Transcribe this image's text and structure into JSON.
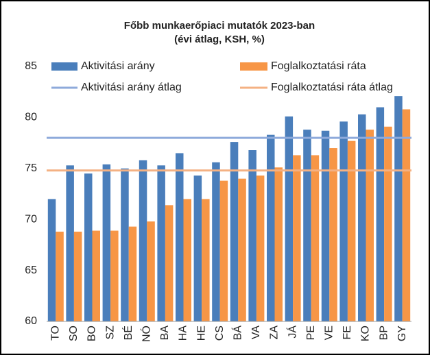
{
  "chart_data": {
    "type": "bar",
    "title": "Főbb munkaerőpiaci mutatók 2023-ban",
    "subtitle": "(évi átlag, KSH, %)",
    "categories": [
      "TO",
      "SO",
      "BO",
      "SZ",
      "BÉ",
      "NÓ",
      "BA",
      "HA",
      "HE",
      "CS",
      "BÁ",
      "VA",
      "ZA",
      "JÁ",
      "PE",
      "VE",
      "FE",
      "KO",
      "BP",
      "GY"
    ],
    "series": [
      {
        "name": "Aktivitási arány",
        "color": "#4a7ebb",
        "values": [
          72.0,
          75.3,
          74.5,
          75.4,
          75.0,
          75.8,
          75.3,
          76.5,
          74.3,
          75.6,
          77.6,
          76.8,
          78.3,
          80.1,
          78.8,
          78.7,
          79.6,
          80.3,
          81.0,
          82.1
        ]
      },
      {
        "name": "Foglalkoztatási ráta",
        "color": "#f79646",
        "values": [
          68.8,
          68.8,
          68.9,
          68.9,
          69.3,
          69.8,
          71.4,
          72.0,
          72.0,
          73.8,
          74.0,
          74.3,
          75.1,
          76.3,
          76.3,
          77.0,
          77.7,
          78.8,
          79.1,
          80.8
        ]
      }
    ],
    "reference_lines": [
      {
        "name": "Aktivitási arány átlag",
        "color": "#8eaadb",
        "value": 78.0
      },
      {
        "name": "Foglalkoztatási ráta átlag",
        "color": "#f4b183",
        "value": 74.8
      }
    ],
    "ylim": [
      60,
      85
    ],
    "yticks": [
      60,
      65,
      70,
      75,
      80,
      85
    ],
    "grid": false
  }
}
